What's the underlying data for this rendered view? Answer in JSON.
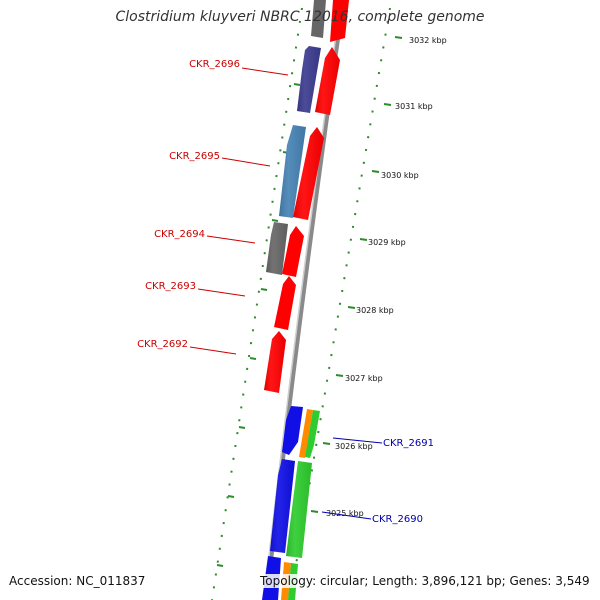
{
  "title": "Clostridium kluyveri NBRC 12016, complete genome",
  "accession": "Accession: NC_011837",
  "topology": "Topology: circular; Length: 3,896,121 bp; Genes: 3,549",
  "colors": {
    "backbone": "#8a8a8a",
    "ruler": "#2e8b2e",
    "red": "#ff0000",
    "grey": "#666666",
    "purple": "#3b3b8f",
    "steel": "#4682b4",
    "blue": "#1010e6",
    "green": "#2ecc2e",
    "orange": "#ff8c00",
    "label_red": "#cc0000",
    "label_blue": "#0000aa"
  },
  "ticks": [
    "3032 kbp",
    "3031 kbp",
    "3030 kbp",
    "3029 kbp",
    "3028 kbp",
    "3027 kbp",
    "3026 kbp",
    "3025 kbp"
  ],
  "gene_labels": [
    "CKR_2696",
    "CKR_2695",
    "CKR_2694",
    "CKR_2693",
    "CKR_2692",
    "CKR_2691",
    "CKR_2690"
  ]
}
